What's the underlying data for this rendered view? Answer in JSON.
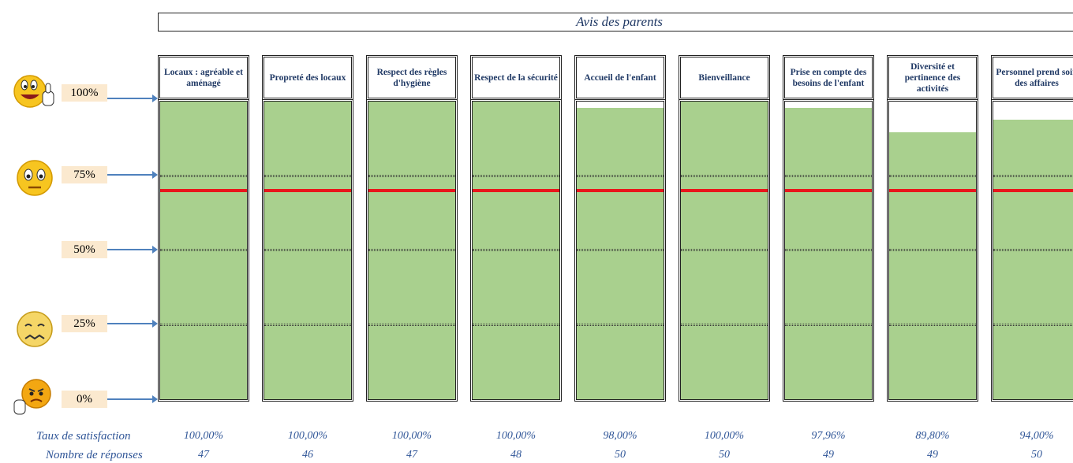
{
  "chart_data": {
    "type": "bar",
    "title": "Avis des parents",
    "categories": [
      "Locaux : agréable et aménagé",
      "Propreté des locaux",
      "Respect des règles d'hygiène",
      "Respect de la sécurité",
      "Accueil de l'enfant",
      "Bienveillance",
      "Prise en compte des besoins de l'enfant",
      "Diversité et pertinence des activités",
      "Personnel prend soin des affaires"
    ],
    "values": [
      100.0,
      100.0,
      100.0,
      100.0,
      98.0,
      100.0,
      97.96,
      89.8,
      94.0
    ],
    "responses": [
      47,
      46,
      47,
      48,
      50,
      50,
      49,
      49,
      50
    ],
    "ylim": [
      0,
      100
    ],
    "yticks": [
      "100%",
      "75%",
      "50%",
      "25%",
      "0%"
    ],
    "reference_line": 70,
    "colors": {
      "bar": "#a9d08e",
      "reference": "#e8161b",
      "text": "#2f5597",
      "label_bg": "#fbe9cf"
    }
  },
  "rows": {
    "satisfaction_label": "Taux de satisfaction",
    "responses_label": "Nombre de réponses",
    "satisfaction_values": [
      "100,00%",
      "100,00%",
      "100,00%",
      "100,00%",
      "98,00%",
      "100,00%",
      "97,96%",
      "89,80%",
      "94,00%"
    ]
  },
  "icons": [
    "laughing-thumbs-up-smiley-icon",
    "worried-smiley-icon",
    "anxious-smiley-icon",
    "angry-thumbs-down-smiley-icon"
  ]
}
